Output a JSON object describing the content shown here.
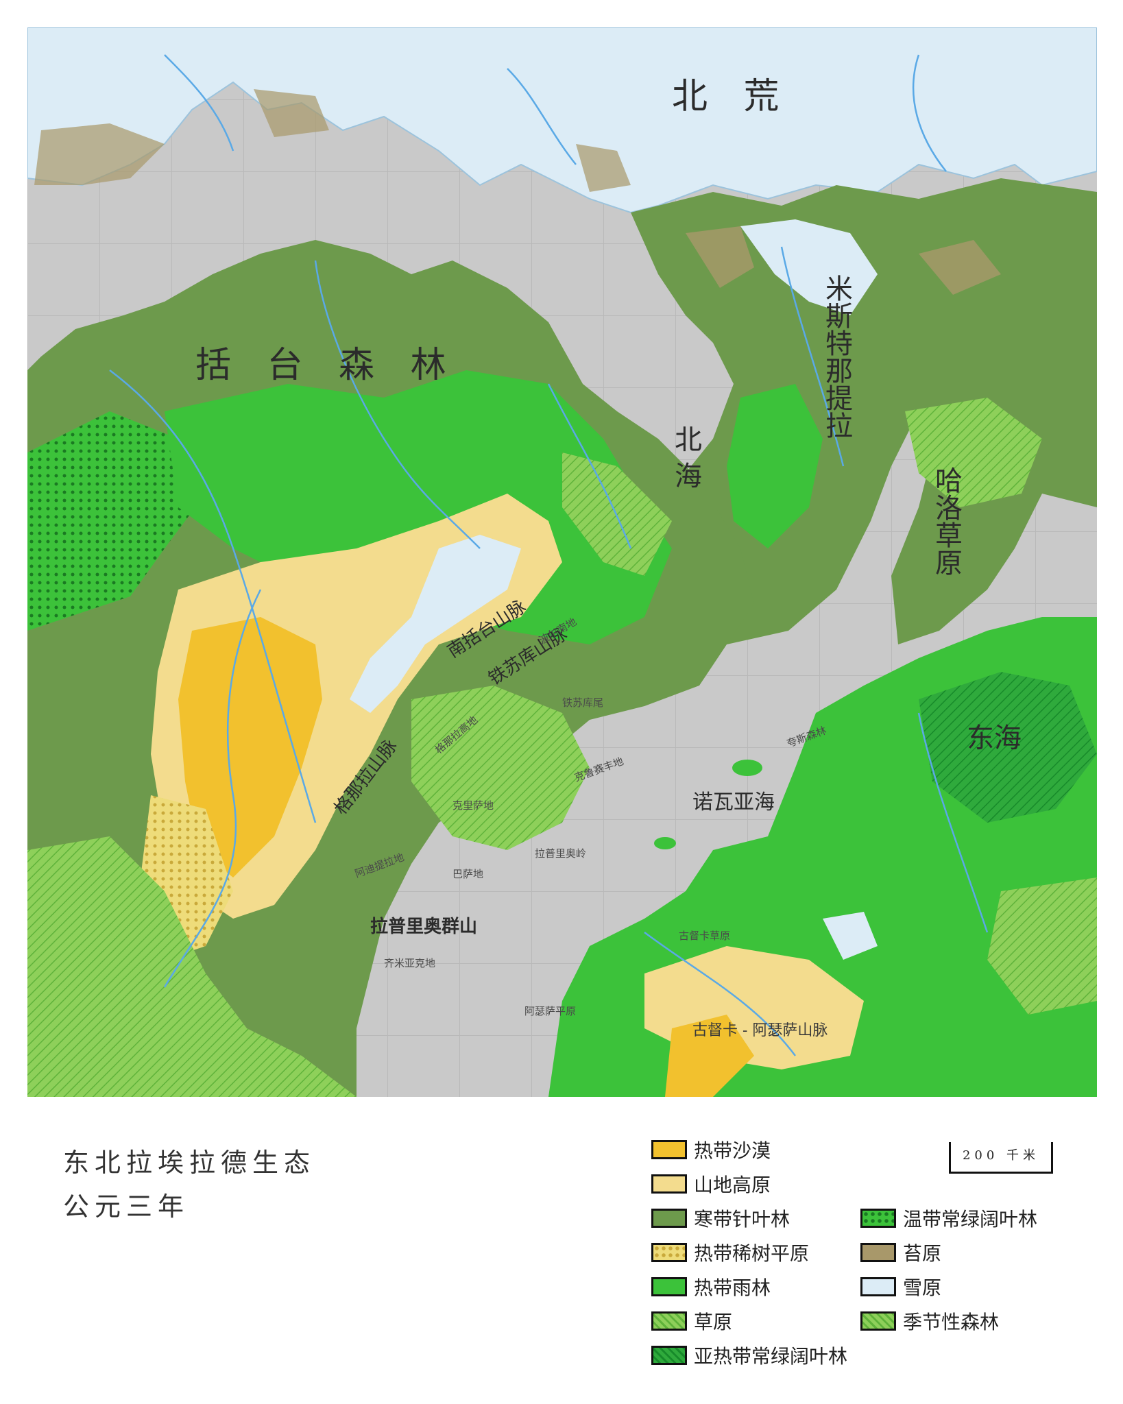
{
  "map": {
    "regions": [
      {
        "id": "beihuang",
        "text": "北 荒"
      },
      {
        "id": "kuotai",
        "text": "括 台 森 林"
      },
      {
        "id": "beihai",
        "text": "北 海"
      },
      {
        "id": "misitenatila",
        "text": "米斯特那提拉"
      },
      {
        "id": "hagecaoyuan",
        "text": "哈洛草原"
      },
      {
        "id": "donghai",
        "text": "东海"
      },
      {
        "id": "nuowayahai",
        "text": "诺瓦亚海"
      },
      {
        "id": "nankuotai",
        "text": "南括台山脉"
      },
      {
        "id": "tiesuku",
        "text": "铁苏库山脉"
      },
      {
        "id": "genala",
        "text": "格那拉山脉"
      },
      {
        "id": "lapuliao",
        "text": "拉普里奥群山"
      },
      {
        "id": "guduka",
        "text": "古督卡 - 阿瑟萨山脉"
      }
    ],
    "small_labels": [
      {
        "id": "genala_gaodi",
        "text": "格那拉高地"
      },
      {
        "id": "kelisadi",
        "text": "克里萨地"
      },
      {
        "id": "kelusaidi",
        "text": "克鲁赛丰地"
      },
      {
        "id": "lapuliaoling",
        "text": "拉普里奥岭"
      },
      {
        "id": "adiitila",
        "text": "阿迪提拉地"
      },
      {
        "id": "basadi",
        "text": "巴萨地"
      },
      {
        "id": "qimiyake",
        "text": "齐米亚克地"
      },
      {
        "id": "asisaping",
        "text": "阿瑟萨平原"
      },
      {
        "id": "gudukacao",
        "text": "古督卡草原"
      },
      {
        "id": "tiesukuwei",
        "text": "铁苏库尾"
      },
      {
        "id": "bozhuanhuai",
        "text": "波尔南地"
      },
      {
        "id": "guatiaosi",
        "text": "夸斯森林"
      }
    ]
  },
  "title": {
    "line1": "东北拉埃拉德生态",
    "line2": "公元三年"
  },
  "legend": [
    {
      "label": "热带沙漠",
      "color": "#f2c12e",
      "pattern": "solid"
    },
    {
      "label": "山地高原",
      "color": "#f3dc8e",
      "pattern": "solid"
    },
    {
      "label": "寒带针叶林",
      "color": "#6d9a4c",
      "pattern": "solid"
    },
    {
      "label": "热带稀树平原",
      "color": "#eedc7a",
      "pattern": "dots"
    },
    {
      "label": "热带雨林",
      "color": "#3cc23a",
      "pattern": "solid"
    },
    {
      "label": "草原",
      "color": "#96dc64",
      "pattern": "hatch"
    },
    {
      "label": "亚热带常绿阔叶林",
      "color": "#28a83c",
      "pattern": "hatch-dark"
    },
    {
      "label": "温带常绿阔叶林",
      "color": "#3cc23a",
      "pattern": "dots-dark"
    },
    {
      "label": "苔原",
      "color": "#a8986a",
      "pattern": "solid"
    },
    {
      "label": "雪原",
      "color": "#dcecf6",
      "pattern": "solid"
    },
    {
      "label": "季节性森林",
      "color": "#8ed05a",
      "pattern": "hatch"
    }
  ],
  "scale": {
    "label": "200 千米"
  }
}
